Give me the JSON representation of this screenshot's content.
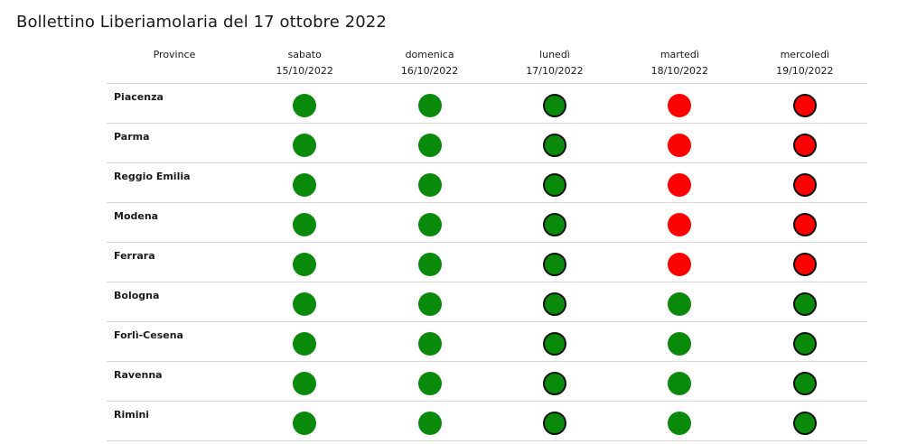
{
  "page": {
    "title": "Bollettino Liberiamolaria del 17 ottobre 2022"
  },
  "colors": {
    "green": "#0a8a0a",
    "red": "#ff0000",
    "outline": "#111111"
  },
  "table": {
    "province_header": "Province",
    "days": [
      {
        "name": "sabato",
        "date": "15/10/2022"
      },
      {
        "name": "domenica",
        "date": "16/10/2022"
      },
      {
        "name": "lunedì",
        "date": "17/10/2022"
      },
      {
        "name": "martedì",
        "date": "18/10/2022"
      },
      {
        "name": "mercoledì",
        "date": "19/10/2022"
      }
    ],
    "rows": [
      {
        "province": "Piacenza",
        "status": [
          "green",
          "green",
          "green-outlined",
          "red",
          "red-outlined"
        ]
      },
      {
        "province": "Parma",
        "status": [
          "green",
          "green",
          "green-outlined",
          "red",
          "red-outlined"
        ]
      },
      {
        "province": "Reggio Emilia",
        "status": [
          "green",
          "green",
          "green-outlined",
          "red",
          "red-outlined"
        ]
      },
      {
        "province": "Modena",
        "status": [
          "green",
          "green",
          "green-outlined",
          "red",
          "red-outlined"
        ]
      },
      {
        "province": "Ferrara",
        "status": [
          "green",
          "green",
          "green-outlined",
          "red",
          "red-outlined"
        ]
      },
      {
        "province": "Bologna",
        "status": [
          "green",
          "green",
          "green-outlined",
          "green",
          "green-outlined"
        ]
      },
      {
        "province": "Forlì-Cesena",
        "status": [
          "green",
          "green",
          "green-outlined",
          "green",
          "green-outlined"
        ]
      },
      {
        "province": "Ravenna",
        "status": [
          "green",
          "green",
          "green-outlined",
          "green",
          "green-outlined"
        ]
      },
      {
        "province": "Rimini",
        "status": [
          "green",
          "green",
          "green-outlined",
          "green",
          "green-outlined"
        ]
      }
    ]
  }
}
